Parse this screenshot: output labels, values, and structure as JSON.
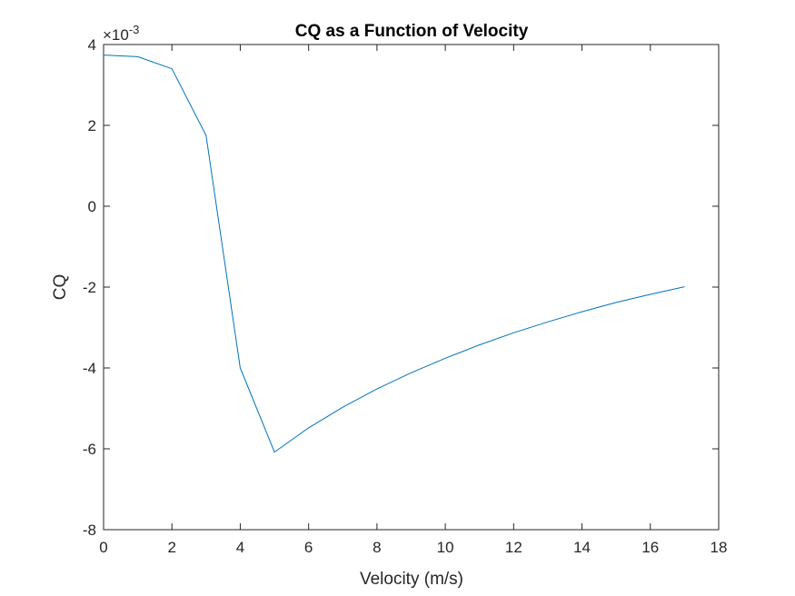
{
  "chart_data": {
    "type": "line",
    "title": "CQ as a Function of Velocity",
    "xlabel": "Velocity (m/s)",
    "ylabel": "CQ",
    "y_exponent_multiplier": "×10",
    "y_exponent_power": "-3",
    "xlim": [
      0,
      18
    ],
    "ylim": [
      -8,
      4
    ],
    "x_ticks": [
      0,
      2,
      4,
      6,
      8,
      10,
      12,
      14,
      16,
      18
    ],
    "y_ticks": [
      -8,
      -6,
      -4,
      -2,
      0,
      2,
      4
    ],
    "grid": false,
    "line_color": "#0072bd",
    "series": [
      {
        "x": [
          0,
          1,
          2,
          3,
          4,
          5,
          6,
          7,
          8,
          9,
          10,
          11,
          12,
          13,
          14,
          15,
          16,
          17
        ],
        "y": [
          3.74,
          3.7,
          3.4,
          1.75,
          -4.0,
          -6.08,
          -5.48,
          -4.97,
          -4.52,
          -4.12,
          -3.76,
          -3.43,
          -3.13,
          -2.86,
          -2.61,
          -2.38,
          -2.18,
          -1.99
        ]
      }
    ]
  }
}
